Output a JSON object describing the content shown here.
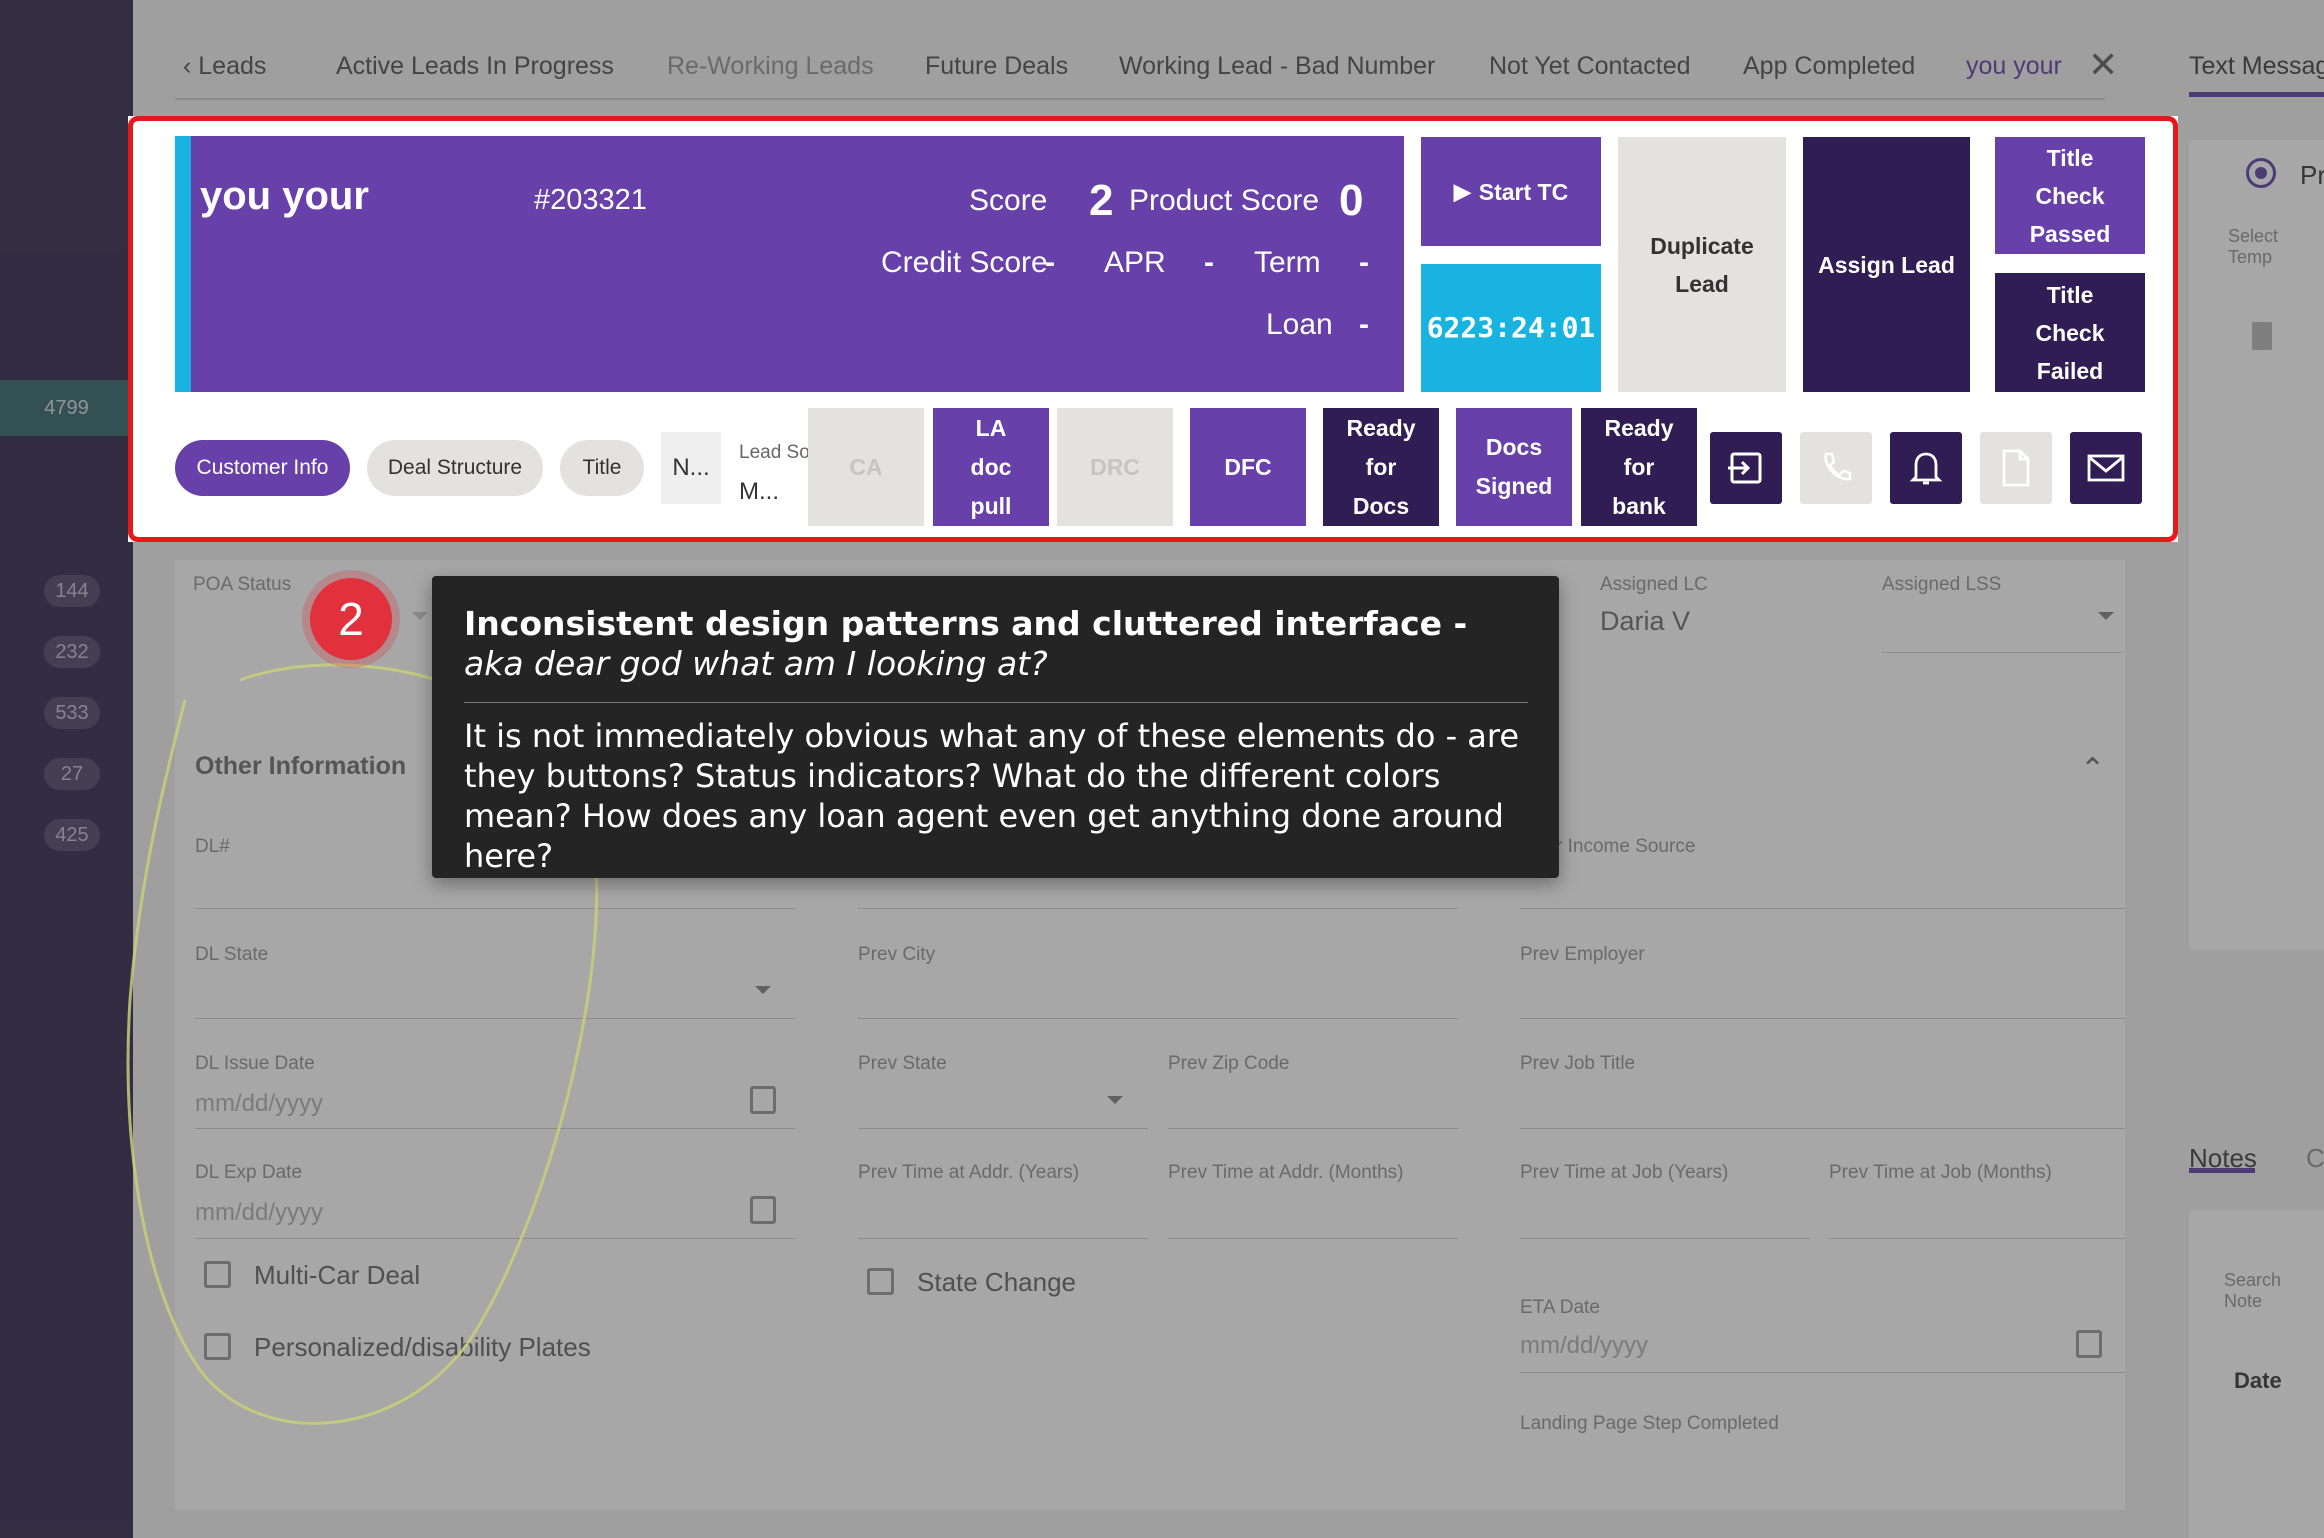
{
  "sidebar": {
    "badges": [
      "4799",
      "144",
      "232",
      "533",
      "27",
      "425"
    ]
  },
  "tabs": {
    "back_label": "Leads",
    "items": [
      "Active Leads In Progress",
      "Re-Working Leads",
      "Future Deals",
      "Working Lead - Bad Number",
      "Not Yet Contacted",
      "App Completed",
      "you your"
    ],
    "right_tab": "Text Messag"
  },
  "lead": {
    "name": "you your",
    "id": "#203321",
    "score_label": "Score",
    "score_value": "2",
    "product_score_label": "Product Score",
    "product_score_value": "0",
    "credit_score_label": "Credit Score",
    "credit_score_value": "-",
    "apr_label": "APR",
    "apr_value": "-",
    "term_label": "Term",
    "term_value": "-",
    "loan_label": "Loan",
    "loan_value": "-"
  },
  "actions": {
    "start_tc": "Start TC",
    "timer": "6223:24:01",
    "duplicate_lead_1": "Duplicate",
    "duplicate_lead_2": "Lead",
    "assign_lead": "Assign Lead",
    "title_check_passed": [
      "Title",
      "Check",
      "Passed"
    ],
    "title_check_failed": [
      "Title",
      "Check",
      "Failed"
    ]
  },
  "pills": {
    "customer_info": "Customer Info",
    "deal_structure": "Deal Structure",
    "title": "Title",
    "n_truncated": "N..."
  },
  "lead_source": {
    "label": "Lead Source",
    "value": "M..."
  },
  "stages": {
    "ca": "CA",
    "la_doc_pull": [
      "LA",
      "doc",
      "pull"
    ],
    "drc": "DRC",
    "dfc": "DFC",
    "ready_for_docs": [
      "Ready",
      "for",
      "Docs"
    ],
    "docs_signed": [
      "Docs",
      "Signed"
    ],
    "ready_for_bank": [
      "Ready",
      "for",
      "bank"
    ]
  },
  "form": {
    "poa_status": "POA Status",
    "assigned_lc": "Assigned LC",
    "assigned_lc_value": "Daria V",
    "assigned_lss": "Assigned LSS",
    "other_information": "Other Information",
    "dl_number": "DL#",
    "income_source": "r Income Source",
    "dl_state": "DL State",
    "prev_city": "Prev City",
    "prev_employer": "Prev Employer",
    "dl_issue_date": "DL Issue Date",
    "prev_state": "Prev State",
    "prev_zip": "Prev Zip Code",
    "prev_job_title": "Prev Job Title",
    "dl_exp_date": "DL Exp Date",
    "prev_time_addr_years": "Prev Time at Addr. (Years)",
    "prev_time_addr_months": "Prev Time at Addr. (Months)",
    "prev_time_job_years": "Prev Time at Job (Years)",
    "prev_time_job_months": "Prev Time at Job (Months)",
    "date_placeholder": "mm/dd/yyyy",
    "multi_car_deal": "Multi-Car Deal",
    "state_change": "State Change",
    "personalized_plates": "Personalized/disability Plates",
    "eta_date": "ETA Date",
    "landing_page_step": "Landing Page Step Completed"
  },
  "right_panel": {
    "radio_label": "Pr",
    "select_template": "Select Temp",
    "notes_tab": "Notes",
    "second_tab": "C",
    "search_notes": "Search Note",
    "date_header": "Date"
  },
  "tooltip": {
    "step_number": "2",
    "title_bold": "Inconsistent design patterns and cluttered interface - ",
    "title_italic": "aka dear god what am I looking at?",
    "body": "It is not immediately obvious what any of these elements do - are they buttons? Status indicators? What do the different colors mean? How does any loan agent even get anything done around here?"
  },
  "colors": {
    "purple": "#6740a9",
    "dark_purple": "#2f1d54",
    "cyan": "#18b3e0",
    "highlight_red": "#e4191c",
    "badge_red": "#e0313c"
  }
}
